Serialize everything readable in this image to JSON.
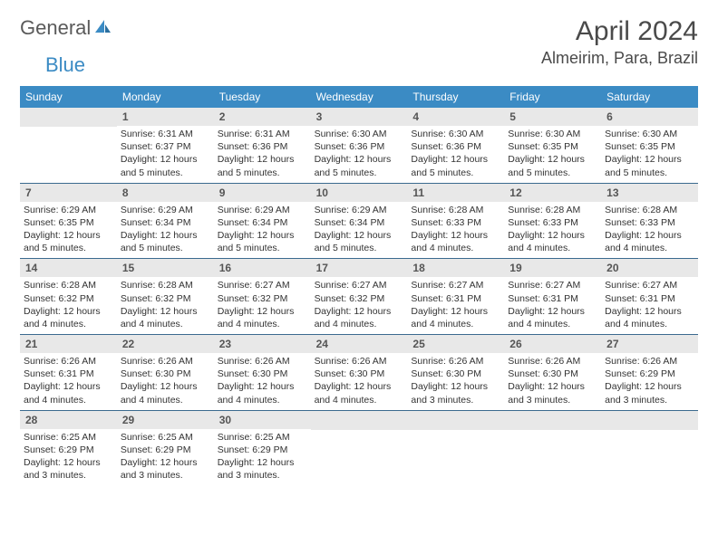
{
  "logo": {
    "part1": "General",
    "part2": "Blue"
  },
  "title": "April 2024",
  "location": "Almeirim, Para, Brazil",
  "colors": {
    "header_bg": "#3b8bc4",
    "header_text": "#ffffff",
    "daynum_bg": "#e8e8e8",
    "daynum_text": "#555555",
    "week_border": "#3b6a8f",
    "title_text": "#4a4a4a",
    "body_text": "#333333"
  },
  "day_names": [
    "Sunday",
    "Monday",
    "Tuesday",
    "Wednesday",
    "Thursday",
    "Friday",
    "Saturday"
  ],
  "weeks": [
    [
      null,
      {
        "n": "1",
        "sr": "Sunrise: 6:31 AM",
        "ss": "Sunset: 6:37 PM",
        "dl": "Daylight: 12 hours and 5 minutes."
      },
      {
        "n": "2",
        "sr": "Sunrise: 6:31 AM",
        "ss": "Sunset: 6:36 PM",
        "dl": "Daylight: 12 hours and 5 minutes."
      },
      {
        "n": "3",
        "sr": "Sunrise: 6:30 AM",
        "ss": "Sunset: 6:36 PM",
        "dl": "Daylight: 12 hours and 5 minutes."
      },
      {
        "n": "4",
        "sr": "Sunrise: 6:30 AM",
        "ss": "Sunset: 6:36 PM",
        "dl": "Daylight: 12 hours and 5 minutes."
      },
      {
        "n": "5",
        "sr": "Sunrise: 6:30 AM",
        "ss": "Sunset: 6:35 PM",
        "dl": "Daylight: 12 hours and 5 minutes."
      },
      {
        "n": "6",
        "sr": "Sunrise: 6:30 AM",
        "ss": "Sunset: 6:35 PM",
        "dl": "Daylight: 12 hours and 5 minutes."
      }
    ],
    [
      {
        "n": "7",
        "sr": "Sunrise: 6:29 AM",
        "ss": "Sunset: 6:35 PM",
        "dl": "Daylight: 12 hours and 5 minutes."
      },
      {
        "n": "8",
        "sr": "Sunrise: 6:29 AM",
        "ss": "Sunset: 6:34 PM",
        "dl": "Daylight: 12 hours and 5 minutes."
      },
      {
        "n": "9",
        "sr": "Sunrise: 6:29 AM",
        "ss": "Sunset: 6:34 PM",
        "dl": "Daylight: 12 hours and 5 minutes."
      },
      {
        "n": "10",
        "sr": "Sunrise: 6:29 AM",
        "ss": "Sunset: 6:34 PM",
        "dl": "Daylight: 12 hours and 5 minutes."
      },
      {
        "n": "11",
        "sr": "Sunrise: 6:28 AM",
        "ss": "Sunset: 6:33 PM",
        "dl": "Daylight: 12 hours and 4 minutes."
      },
      {
        "n": "12",
        "sr": "Sunrise: 6:28 AM",
        "ss": "Sunset: 6:33 PM",
        "dl": "Daylight: 12 hours and 4 minutes."
      },
      {
        "n": "13",
        "sr": "Sunrise: 6:28 AM",
        "ss": "Sunset: 6:33 PM",
        "dl": "Daylight: 12 hours and 4 minutes."
      }
    ],
    [
      {
        "n": "14",
        "sr": "Sunrise: 6:28 AM",
        "ss": "Sunset: 6:32 PM",
        "dl": "Daylight: 12 hours and 4 minutes."
      },
      {
        "n": "15",
        "sr": "Sunrise: 6:28 AM",
        "ss": "Sunset: 6:32 PM",
        "dl": "Daylight: 12 hours and 4 minutes."
      },
      {
        "n": "16",
        "sr": "Sunrise: 6:27 AM",
        "ss": "Sunset: 6:32 PM",
        "dl": "Daylight: 12 hours and 4 minutes."
      },
      {
        "n": "17",
        "sr": "Sunrise: 6:27 AM",
        "ss": "Sunset: 6:32 PM",
        "dl": "Daylight: 12 hours and 4 minutes."
      },
      {
        "n": "18",
        "sr": "Sunrise: 6:27 AM",
        "ss": "Sunset: 6:31 PM",
        "dl": "Daylight: 12 hours and 4 minutes."
      },
      {
        "n": "19",
        "sr": "Sunrise: 6:27 AM",
        "ss": "Sunset: 6:31 PM",
        "dl": "Daylight: 12 hours and 4 minutes."
      },
      {
        "n": "20",
        "sr": "Sunrise: 6:27 AM",
        "ss": "Sunset: 6:31 PM",
        "dl": "Daylight: 12 hours and 4 minutes."
      }
    ],
    [
      {
        "n": "21",
        "sr": "Sunrise: 6:26 AM",
        "ss": "Sunset: 6:31 PM",
        "dl": "Daylight: 12 hours and 4 minutes."
      },
      {
        "n": "22",
        "sr": "Sunrise: 6:26 AM",
        "ss": "Sunset: 6:30 PM",
        "dl": "Daylight: 12 hours and 4 minutes."
      },
      {
        "n": "23",
        "sr": "Sunrise: 6:26 AM",
        "ss": "Sunset: 6:30 PM",
        "dl": "Daylight: 12 hours and 4 minutes."
      },
      {
        "n": "24",
        "sr": "Sunrise: 6:26 AM",
        "ss": "Sunset: 6:30 PM",
        "dl": "Daylight: 12 hours and 4 minutes."
      },
      {
        "n": "25",
        "sr": "Sunrise: 6:26 AM",
        "ss": "Sunset: 6:30 PM",
        "dl": "Daylight: 12 hours and 3 minutes."
      },
      {
        "n": "26",
        "sr": "Sunrise: 6:26 AM",
        "ss": "Sunset: 6:30 PM",
        "dl": "Daylight: 12 hours and 3 minutes."
      },
      {
        "n": "27",
        "sr": "Sunrise: 6:26 AM",
        "ss": "Sunset: 6:29 PM",
        "dl": "Daylight: 12 hours and 3 minutes."
      }
    ],
    [
      {
        "n": "28",
        "sr": "Sunrise: 6:25 AM",
        "ss": "Sunset: 6:29 PM",
        "dl": "Daylight: 12 hours and 3 minutes."
      },
      {
        "n": "29",
        "sr": "Sunrise: 6:25 AM",
        "ss": "Sunset: 6:29 PM",
        "dl": "Daylight: 12 hours and 3 minutes."
      },
      {
        "n": "30",
        "sr": "Sunrise: 6:25 AM",
        "ss": "Sunset: 6:29 PM",
        "dl": "Daylight: 12 hours and 3 minutes."
      },
      null,
      null,
      null,
      null
    ]
  ]
}
